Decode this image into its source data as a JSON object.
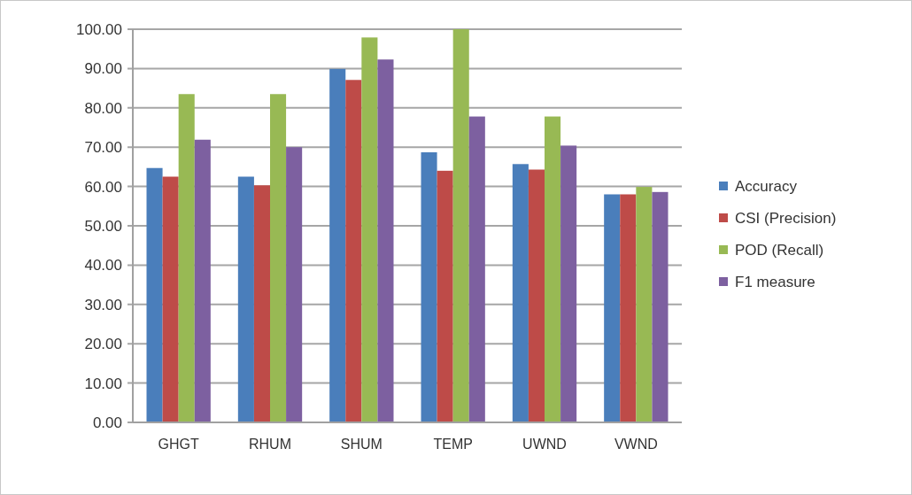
{
  "chart_data": {
    "type": "bar",
    "categories": [
      "GHGT",
      "RHUM",
      "SHUM",
      "TEMP",
      "UWND",
      "VWND"
    ],
    "series": [
      {
        "name": "Accuracy",
        "color": "#4a7ebb",
        "values": [
          64.7,
          62.5,
          89.9,
          68.7,
          65.7,
          58.0
        ]
      },
      {
        "name": "CSI (Precision)",
        "color": "#be4b48",
        "values": [
          62.5,
          60.3,
          87.1,
          64.0,
          64.3,
          58.0
        ]
      },
      {
        "name": "POD (Recall)",
        "color": "#98b954",
        "values": [
          83.5,
          83.5,
          97.9,
          100.0,
          77.8,
          59.9
        ]
      },
      {
        "name": "F1 measure",
        "color": "#7d60a0",
        "values": [
          71.9,
          70.0,
          92.3,
          77.8,
          70.4,
          58.6
        ]
      }
    ],
    "ylim": [
      0,
      100
    ],
    "yticks": [
      {
        "value": 0,
        "label": "0.00"
      },
      {
        "value": 10,
        "label": "10.00"
      },
      {
        "value": 20,
        "label": "20.00"
      },
      {
        "value": 30,
        "label": "30.00"
      },
      {
        "value": 40,
        "label": "40.00"
      },
      {
        "value": 50,
        "label": "50.00"
      },
      {
        "value": 60,
        "label": "60.00"
      },
      {
        "value": 70,
        "label": "70.00"
      },
      {
        "value": 80,
        "label": "80.00"
      },
      {
        "value": 90,
        "label": "90.00"
      },
      {
        "value": 100,
        "label": "100.00"
      }
    ],
    "grid": "y",
    "legend": "right"
  }
}
